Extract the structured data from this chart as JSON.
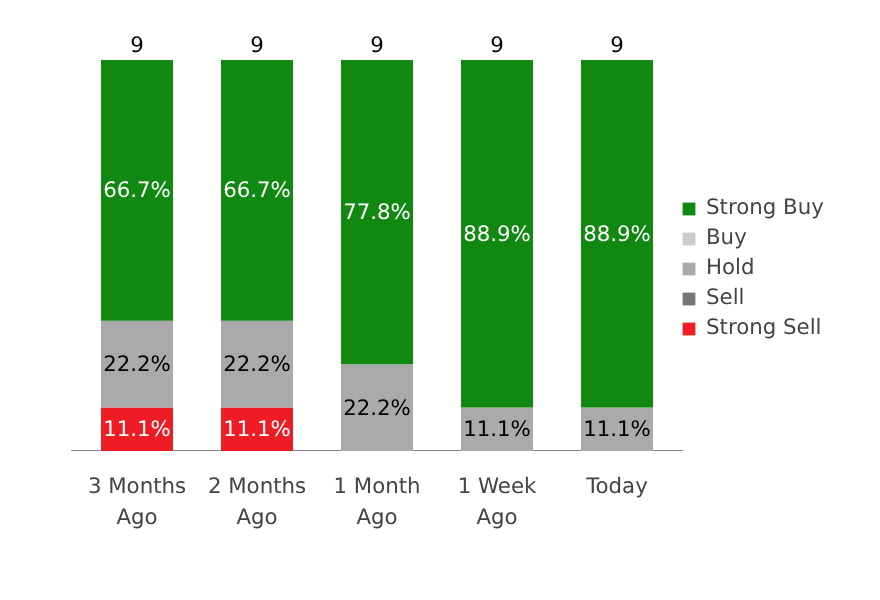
{
  "chart_data": {
    "type": "bar",
    "stacked": true,
    "categories": [
      "3 Months Ago",
      "2 Months Ago",
      "1 Month Ago",
      "1 Week Ago",
      "Today"
    ],
    "series": [
      {
        "name": "Strong Sell",
        "color": "#ee1c25",
        "values": [
          11.1,
          11.1,
          0,
          0,
          0
        ],
        "value_labels": [
          "11.1%",
          "11.1%",
          null,
          null,
          null
        ]
      },
      {
        "name": "Sell",
        "color": "#777777",
        "values": [
          0,
          0,
          0,
          0,
          0
        ],
        "value_labels": [
          null,
          null,
          null,
          null,
          null
        ]
      },
      {
        "name": "Hold",
        "color": "#aaaaaa",
        "values": [
          22.2,
          22.2,
          22.2,
          11.1,
          11.1
        ],
        "value_labels": [
          "22.2%",
          "22.2%",
          "22.2%",
          "11.1%",
          "11.1%"
        ]
      },
      {
        "name": "Buy",
        "color": "#cccccc",
        "values": [
          0,
          0,
          0,
          0,
          0
        ],
        "value_labels": [
          null,
          null,
          null,
          null,
          null
        ]
      },
      {
        "name": "Strong Buy",
        "color": "#118811",
        "values": [
          66.7,
          66.7,
          77.8,
          88.9,
          88.9
        ],
        "value_labels": [
          "66.7%",
          "66.7%",
          "77.8%",
          "88.9%",
          "88.9%"
        ]
      }
    ],
    "annotations": [
      {
        "text": "9",
        "x": "3 Months Ago",
        "y": 100
      },
      {
        "text": "9",
        "x": "2 Months Ago",
        "y": 100
      },
      {
        "text": "9",
        "x": "1 Month Ago",
        "y": 100
      },
      {
        "text": "9",
        "x": "1 Week Ago",
        "y": 100
      },
      {
        "text": "9",
        "x": "Today",
        "y": 100
      }
    ],
    "legend": "right",
    "grid": false
  }
}
